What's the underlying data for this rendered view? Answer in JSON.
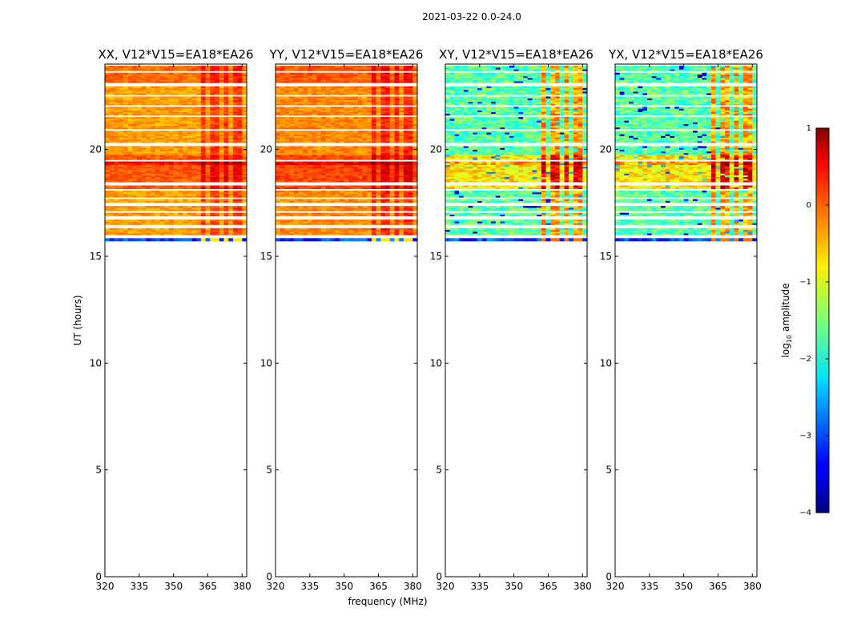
{
  "chart_data": {
    "type": "heatmap",
    "suptitle": "2021-03-22 0.0-24.0",
    "xlabel": "frequency (MHz)",
    "ylabel": "UT (hours)",
    "colorbar": {
      "label_prefix": "log",
      "label_sub": "10",
      "label_suffix": " amplitude",
      "ticks": [
        1,
        0,
        -1,
        -2,
        -3,
        -4
      ],
      "tick_labels": [
        "1",
        "0",
        "−1",
        "−2",
        "−3",
        "−4"
      ],
      "range": [
        -4,
        1
      ],
      "colormap": "jet"
    },
    "x_ticks": [
      320,
      335,
      350,
      365,
      380
    ],
    "y_ticks": [
      0,
      5,
      10,
      15,
      20
    ],
    "xlim": [
      320,
      382
    ],
    "ylim": [
      0,
      24
    ],
    "data_time_range_hours": [
      15.7,
      23.9
    ],
    "rfi_band_mhz": [
      361,
      381
    ],
    "panels": [
      {
        "title": "XX, V12*V15=EA18*EA26",
        "pol": "XX",
        "base_level": -0.4
      },
      {
        "title": "YY, V12*V15=EA18*EA26",
        "pol": "YY",
        "base_level": -0.3
      },
      {
        "title": "XY, V12*V15=EA18*EA26",
        "pol": "XY",
        "base_level": -1.7
      },
      {
        "title": "YX, V12*V15=EA18*EA26",
        "pol": "YX",
        "base_level": -1.7
      }
    ]
  }
}
